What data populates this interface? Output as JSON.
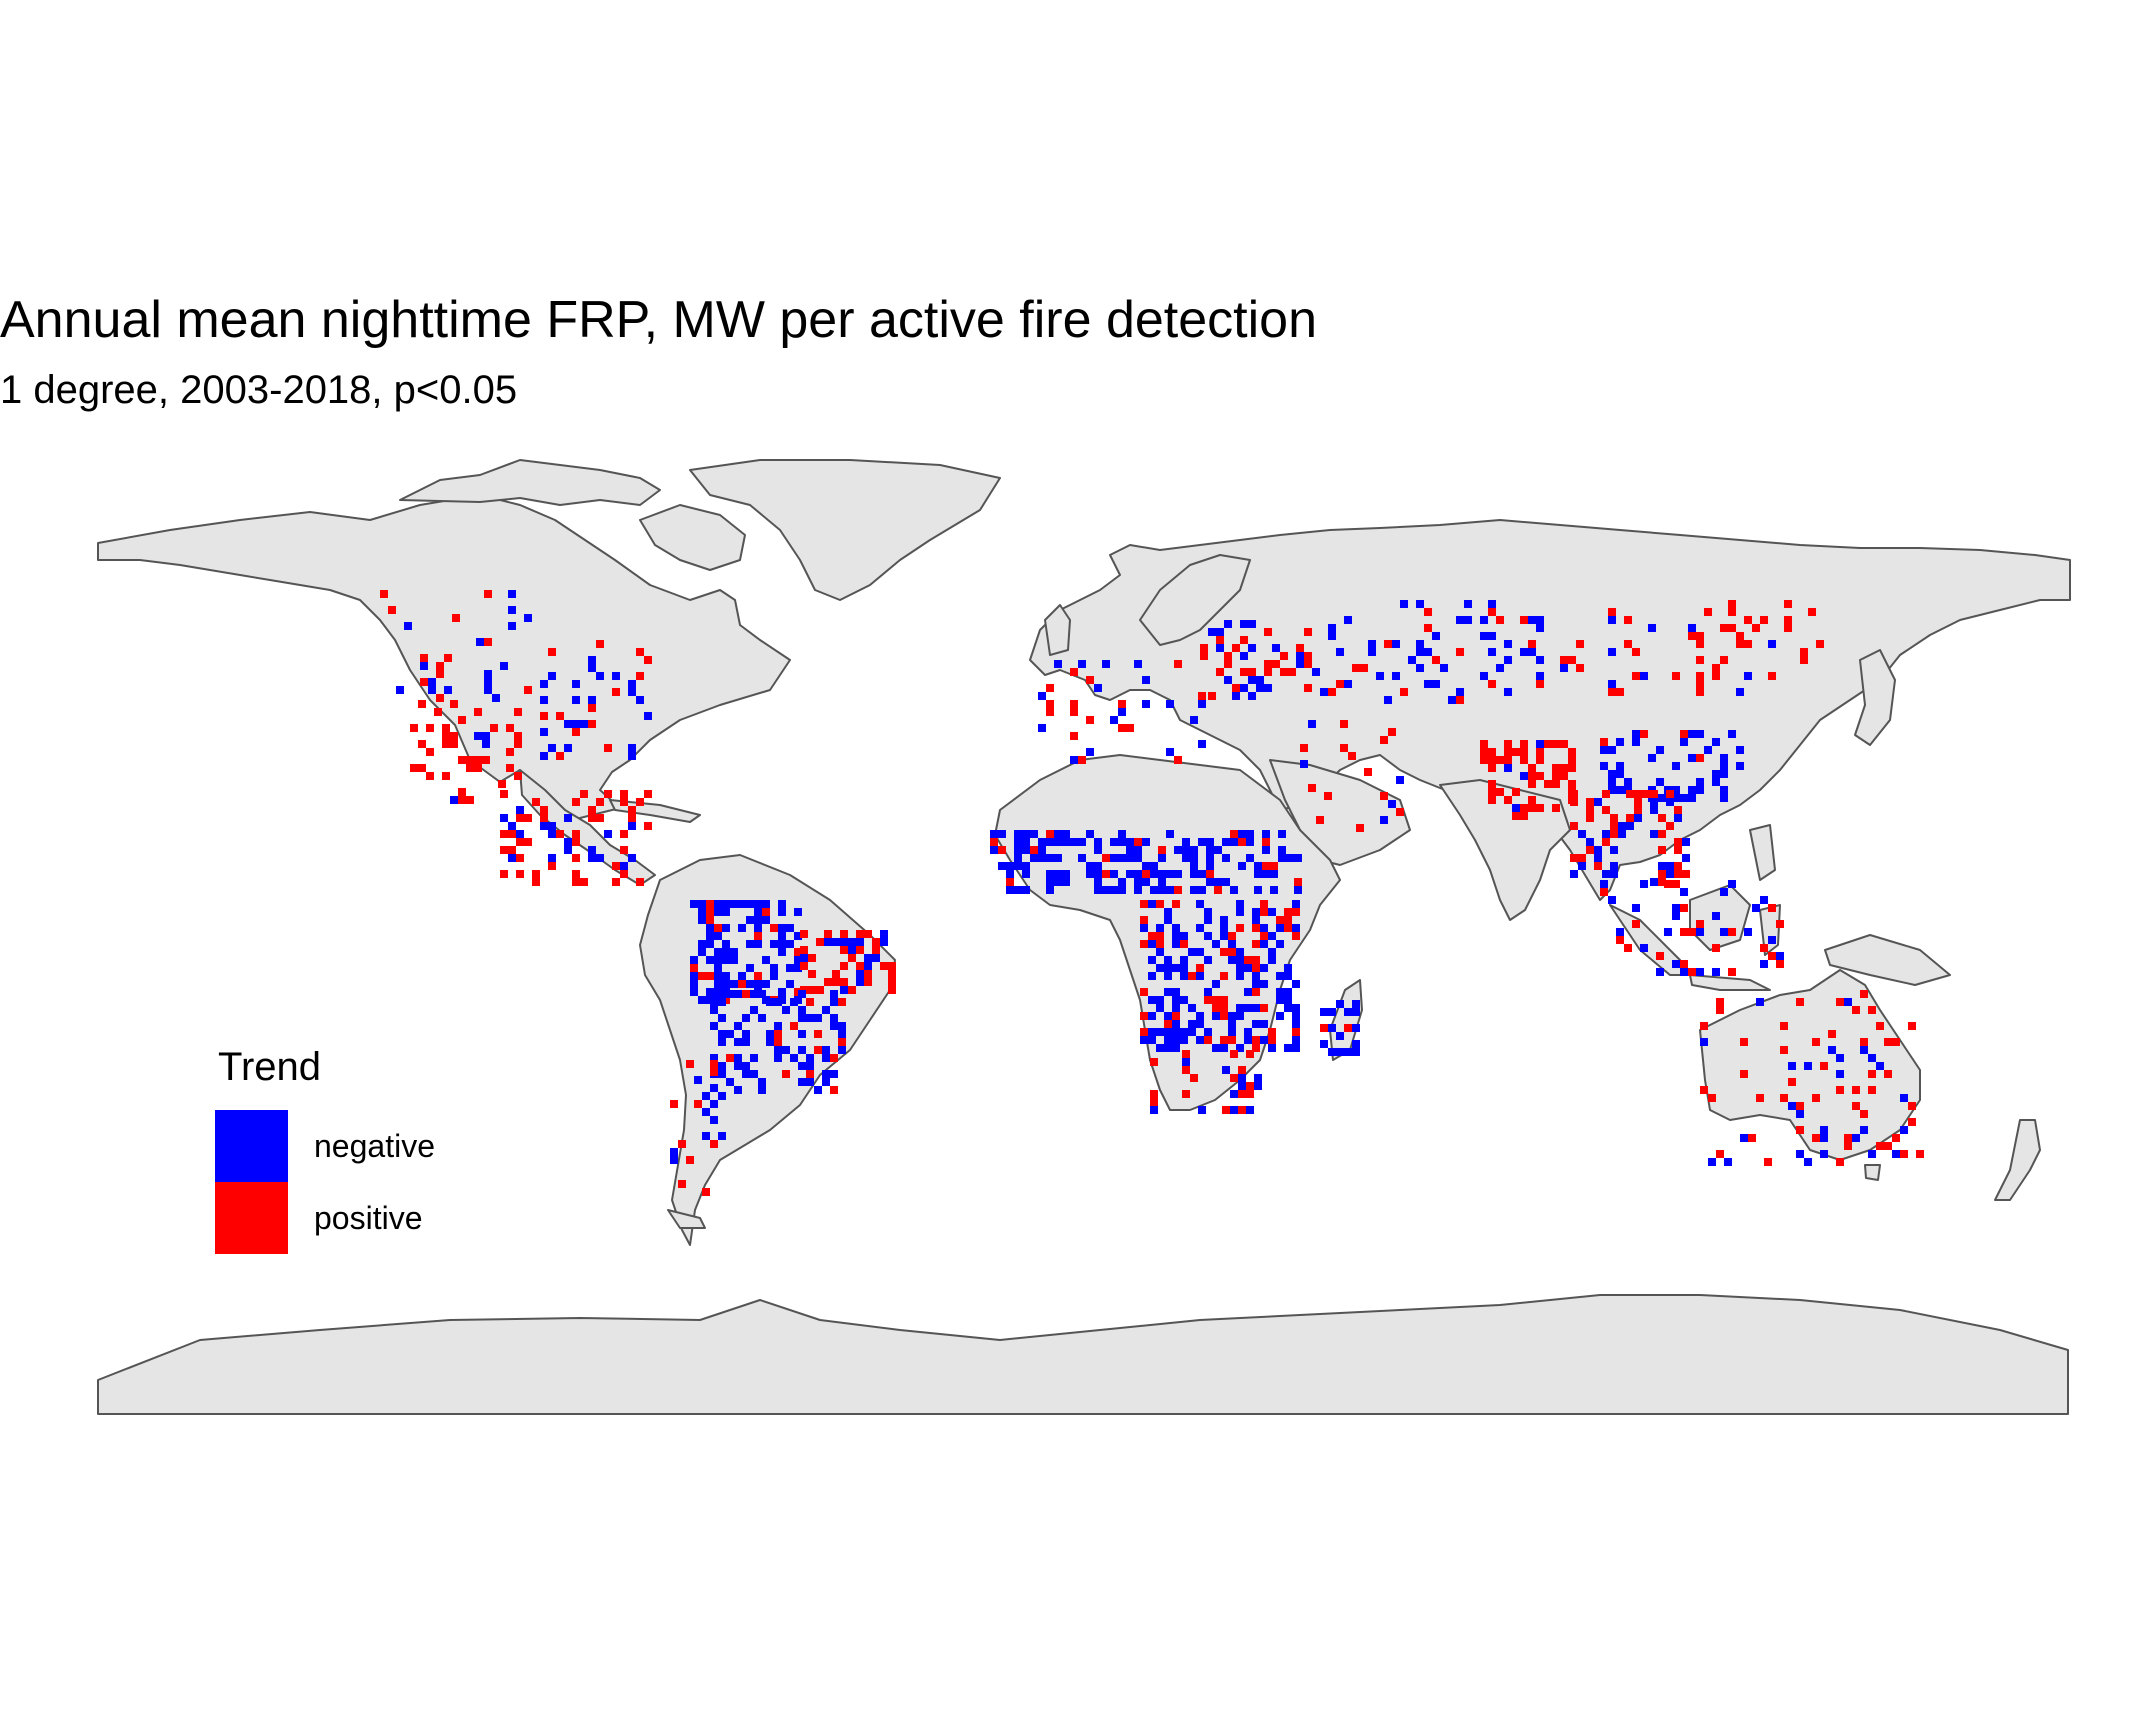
{
  "title": "Annual mean nighttime FRP, MW per active fire detection",
  "subtitle": "1 degree, 2003-2018, p<0.05",
  "legend": {
    "title": "Trend",
    "items": [
      {
        "label": "negative",
        "color": "#0000ff"
      },
      {
        "label": "positive",
        "color": "#ff0000"
      }
    ]
  },
  "colors": {
    "land": "#e5e5e5",
    "border": "#555555",
    "negative": "#0000ff",
    "positive": "#ff0000"
  }
}
